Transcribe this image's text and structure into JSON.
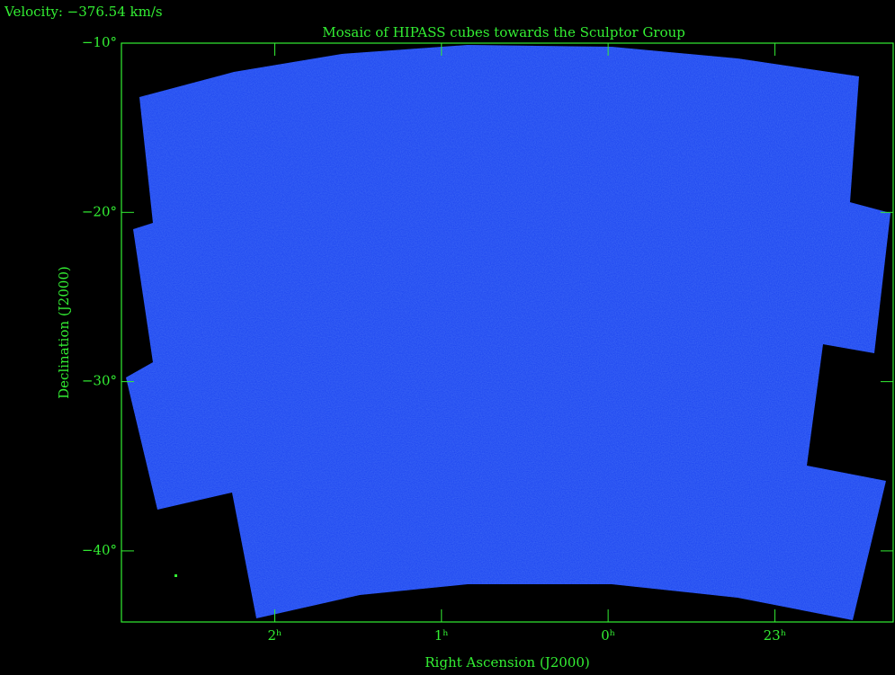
{
  "chart_data": {
    "type": "image",
    "header": "Velocity: −376.54 km/s",
    "title": "Mosaic of HIPASS cubes towards the Sculptor Group",
    "x_label": "Right Ascension (J2000)",
    "y_label": "Declination (J2000)",
    "xlim": [
      2.92,
      -1.71
    ],
    "xticks": [
      {
        "value": 2,
        "label": "2ʰ"
      },
      {
        "value": 1,
        "label": "1ʰ"
      },
      {
        "value": 0,
        "label": "0ʰ"
      },
      {
        "value": -1,
        "label": "23ʰ"
      }
    ],
    "ylim": [
      -44.2,
      -10
    ],
    "yticks": [
      {
        "value": -10,
        "label": "−10°"
      },
      {
        "value": -20,
        "label": "−20°"
      },
      {
        "value": -30,
        "label": "−30°"
      },
      {
        "value": -40,
        "label": "−40°"
      }
    ],
    "color": "#33ee33"
  }
}
